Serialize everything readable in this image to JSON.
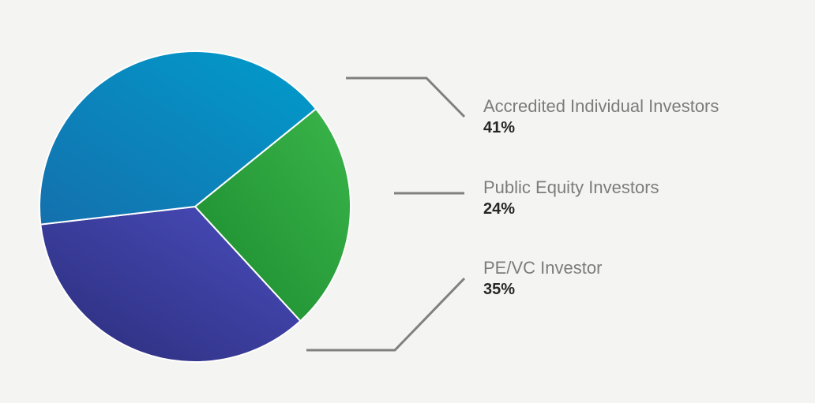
{
  "chart_data": {
    "type": "pie",
    "slices": [
      {
        "label": "Accredited Individual Investors",
        "value": 41,
        "value_label": "41%",
        "color_start": "#1470ad",
        "color_end": "#019ccc"
      },
      {
        "label": "Public Equity Investors",
        "value": 24,
        "value_label": "24%",
        "color_start": "#1a8a2e",
        "color_end": "#3bb54a"
      },
      {
        "label": "PE/VC Investor",
        "value": 35,
        "value_label": "35%",
        "color_start": "#2b2d7a",
        "color_end": "#4a4dbd"
      }
    ],
    "legend_position": "right",
    "connector_color": "#808080"
  }
}
